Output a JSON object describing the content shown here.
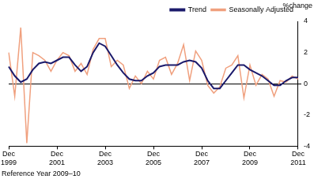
{
  "chart_data": {
    "type": "line",
    "y_label": "%change",
    "annotations": [
      "Reference Year 2009–10"
    ],
    "categories": [
      "Dec 1999",
      null,
      null,
      null,
      null,
      null,
      null,
      null,
      "Dec 2001",
      null,
      null,
      null,
      null,
      null,
      null,
      null,
      "Dec 2003",
      null,
      null,
      null,
      null,
      null,
      null,
      null,
      "Dec 2005",
      null,
      null,
      null,
      null,
      null,
      null,
      null,
      "Dec 2007",
      null,
      null,
      null,
      null,
      null,
      null,
      null,
      "Dec 2009",
      null,
      null,
      null,
      null,
      null,
      null,
      null,
      "Dec 2011"
    ],
    "series": [
      {
        "name": "Trend",
        "color": "#1b1a6b",
        "values": [
          1.1,
          0.5,
          0.1,
          0.3,
          0.9,
          1.3,
          1.4,
          1.3,
          1.5,
          1.7,
          1.7,
          1.2,
          0.8,
          1.1,
          2.0,
          2.6,
          2.4,
          1.8,
          1.2,
          0.7,
          0.3,
          0.2,
          0.2,
          0.5,
          0.7,
          1.1,
          1.2,
          1.2,
          1.2,
          1.4,
          1.5,
          1.4,
          1.0,
          0.2,
          -0.3,
          -0.3,
          0.2,
          0.7,
          1.2,
          1.2,
          0.9,
          0.7,
          0.5,
          0.2,
          -0.1,
          -0.1,
          0.2,
          0.4,
          0.4
        ]
      },
      {
        "name": "Seasonally Adjusted",
        "color": "#f0a07e",
        "values": [
          2.0,
          -0.8,
          3.6,
          -3.8,
          2.0,
          1.8,
          1.5,
          0.8,
          1.5,
          2.0,
          1.8,
          0.8,
          1.3,
          0.6,
          2.2,
          2.9,
          2.9,
          1.1,
          1.5,
          1.2,
          -0.3,
          0.5,
          0.0,
          0.8,
          0.3,
          1.5,
          1.7,
          0.6,
          1.3,
          2.5,
          0.2,
          2.1,
          1.5,
          -0.1,
          -0.6,
          -0.2,
          1.0,
          1.2,
          1.8,
          -0.9,
          1.2,
          -0.1,
          0.6,
          0.3,
          -0.8,
          0.2,
          0.1,
          0.5,
          0.3
        ]
      }
    ],
    "ylim": [
      -4,
      4
    ],
    "yticks": [
      -4,
      -2,
      0,
      2,
      4
    ],
    "grid": false,
    "legend": "top-right"
  }
}
